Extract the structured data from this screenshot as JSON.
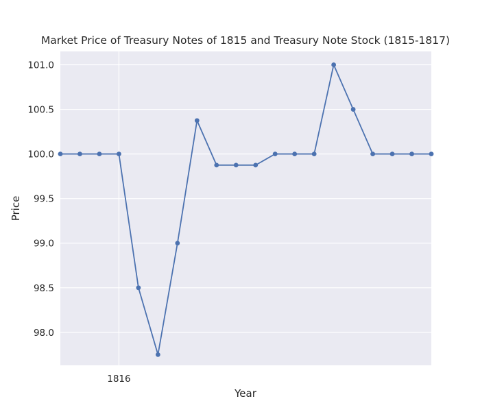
{
  "chart_data": {
    "type": "line",
    "title": "Market Price of Treasury Notes of 1815 and Treasury Note Stock (1815-1817)",
    "xlabel": "Year",
    "ylabel": "Price",
    "x_ticks": [
      {
        "label": "1816",
        "index": 3
      }
    ],
    "y_ticks": [
      98.0,
      98.5,
      99.0,
      99.5,
      100.0,
      100.5,
      101.0
    ],
    "y_tick_labels": [
      "98.0",
      "98.5",
      "99.0",
      "99.5",
      "100.0",
      "100.5",
      "101.0"
    ],
    "ylim": [
      97.63,
      101.15
    ],
    "x_points": 20,
    "series": [
      {
        "color": "#4c72b0",
        "values": [
          100.0,
          100.0,
          100.0,
          100.0,
          98.5,
          97.75,
          99.0,
          100.375,
          99.875,
          99.875,
          99.875,
          100.0,
          100.0,
          100.0,
          101.0,
          100.5,
          100.0,
          100.0,
          100.0,
          100.0
        ]
      }
    ],
    "grid": true,
    "background_color": "#eaeaf2",
    "grid_color": "#ffffff"
  }
}
